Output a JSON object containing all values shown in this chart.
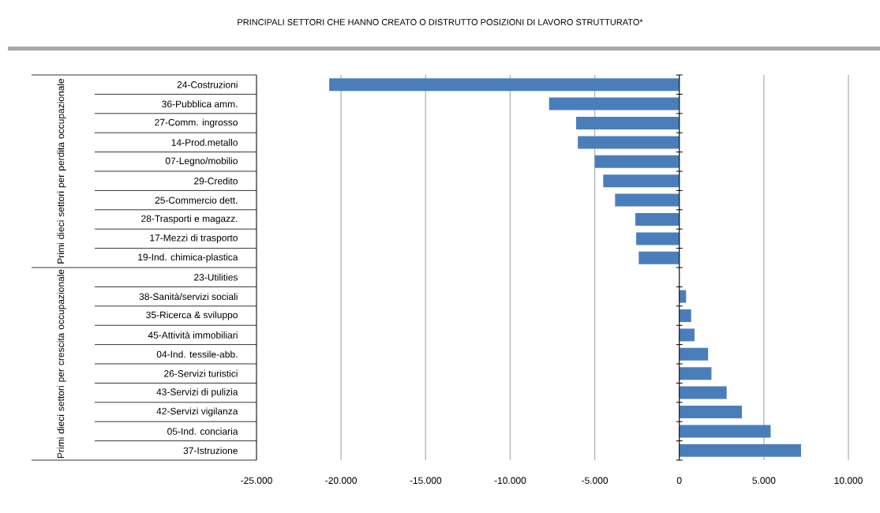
{
  "chart_data": {
    "type": "bar",
    "orientation": "horizontal",
    "title": "PRINCIPALI SETTORI CHE HANNO CREATO O DISTRUTTO POSIZIONI DI LAVORO STRUTTURATO*",
    "annotations": [
      "Primi dieci settori per perdita occupazionale",
      "Primi dieci settori per crescita occupazionale"
    ],
    "categories": [
      "24-Costruzioni",
      "36-Pubblica amm.",
      "27-Comm. ingrosso",
      "14-Prod.metallo",
      "07-Legno/mobilio",
      "29-Credito",
      "25-Commercio dett.",
      "28-Trasporti e magazz.",
      "17-Mezzi di trasporto",
      "19-Ind. chimica-plastica",
      "23-Utilities",
      "38-Sanità/servizi sociali",
      "35-Ricerca & sviluppo",
      "45-Attività immobiliari",
      "04-Ind. tessile-abb.",
      "26-Servizi turistici",
      "43-Servizi di pulizia",
      "42-Servizi vigilanza",
      "05-Ind. conciaria",
      "37-Istruzione"
    ],
    "values": [
      -20700,
      -7700,
      -6100,
      -6000,
      -5000,
      -4500,
      -3800,
      -2600,
      -2550,
      -2400,
      0,
      400,
      700,
      900,
      1700,
      1900,
      2800,
      3700,
      5400,
      7200
    ],
    "color": "#4a7ebb",
    "xlim": [
      -25000,
      10000
    ],
    "xticks": [
      {
        "value": -25000,
        "label": "-25.000"
      },
      {
        "value": -20000,
        "label": "-20.000"
      },
      {
        "value": -15000,
        "label": "-15.000"
      },
      {
        "value": -10000,
        "label": "-10.000"
      },
      {
        "value": -5000,
        "label": "-5.000"
      },
      0,
      {
        "value": 5000,
        "label": "5.000"
      },
      {
        "value": 10000,
        "label": "10.000"
      }
    ],
    "grid": "x"
  }
}
